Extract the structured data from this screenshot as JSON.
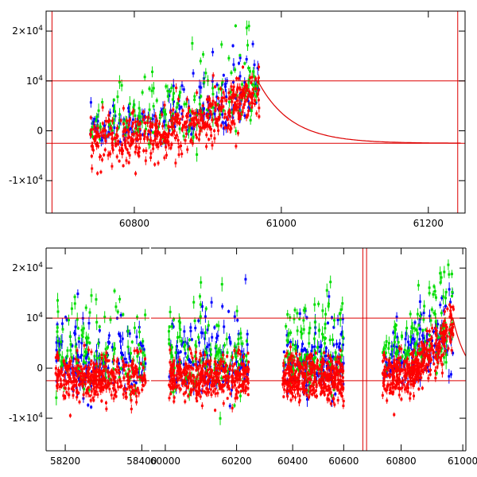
{
  "chart_data": [
    {
      "type": "scatter",
      "title": "",
      "xlabel": "",
      "ylabel": "",
      "xlim": [
        60680,
        61250
      ],
      "ylim": [
        -16500,
        24000
      ],
      "x_ticks": [
        {
          "value": 60800,
          "label": "60800"
        },
        {
          "value": 61000,
          "label": "61000"
        },
        {
          "value": 61200,
          "label": "61200"
        }
      ],
      "y_ticks": [
        {
          "value": 20000,
          "label": "2×10",
          "sup": "4"
        },
        {
          "value": 10000,
          "label": "10",
          "sup": "4"
        },
        {
          "value": 0,
          "label": "0",
          "sup": ""
        },
        {
          "value": -10000,
          "label": "-1×10",
          "sup": "4"
        }
      ],
      "horizontal_lines": [
        10000,
        -2500
      ],
      "vertical_lines": [
        60688,
        61240
      ],
      "model_curve": {
        "x_start": 60968,
        "x_end": 61245,
        "y_start": 10000,
        "y_end": -2500,
        "decay_days": 45
      },
      "series": [
        {
          "name": "blue",
          "color": "#0000ff",
          "x_range": [
            60740,
            60970
          ],
          "baseline": 1000,
          "trend": 8000,
          "scatter": 5500
        },
        {
          "name": "green",
          "color": "#00dd00",
          "x_range": [
            60740,
            60970
          ],
          "baseline": 1500,
          "trend": 8500,
          "scatter": 6000
        },
        {
          "name": "red",
          "color": "#ff0000",
          "x_range": [
            60740,
            60970
          ],
          "baseline": -2000,
          "trend": 10000,
          "scatter": 2500
        }
      ]
    },
    {
      "type": "scatter",
      "title": "",
      "xlabel": "",
      "ylabel": "",
      "broken_axis": true,
      "ylim": [
        -16500,
        24000
      ],
      "y_ticks": [
        {
          "value": 20000,
          "label": "2×10",
          "sup": "4"
        },
        {
          "value": 10000,
          "label": "10",
          "sup": "4"
        },
        {
          "value": 0,
          "label": "0",
          "sup": ""
        },
        {
          "value": -10000,
          "label": "-1×10",
          "sup": "4"
        }
      ],
      "horizontal_lines": [
        10000,
        -2500
      ],
      "segments": [
        {
          "xlim": [
            58150,
            58420
          ],
          "x_ticks": [
            {
              "value": 58200,
              "label": "58200"
            },
            {
              "value": 58400,
              "label": "58400"
            }
          ],
          "data_range": [
            58175,
            58410
          ],
          "trend": 0
        },
        {
          "xlim": [
            59960,
            60250
          ],
          "x_ticks": [
            {
              "value": 60000,
              "label": "60000"
            },
            {
              "value": 60200,
              "label": "60200"
            }
          ],
          "data_range": [
            60010,
            60235
          ],
          "trend": 0
        },
        {
          "xlim": [
            60250,
            60680
          ],
          "x_ticks": [
            {
              "value": 60400,
              "label": "60400"
            },
            {
              "value": 60600,
              "label": "60600"
            }
          ],
          "data_range": [
            60360,
            60600
          ],
          "trend": 0,
          "vertical_line": 60675
        },
        {
          "xlim": [
            60680,
            61010
          ],
          "x_ticks": [
            {
              "value": 60800,
              "label": "60800"
            },
            {
              "value": 61000,
              "label": "61000"
            }
          ],
          "data_range": [
            60740,
            60970
          ],
          "trend": 1,
          "vertical_line": 60688,
          "model_from": 60968
        }
      ],
      "series": [
        {
          "name": "blue",
          "color": "#0000ff",
          "baseline": 1500,
          "scatter": 6000
        },
        {
          "name": "green",
          "color": "#00dd00",
          "baseline": 3000,
          "scatter": 7000
        },
        {
          "name": "red",
          "color": "#ff0000",
          "baseline": -2000,
          "scatter": 2200
        }
      ]
    }
  ]
}
